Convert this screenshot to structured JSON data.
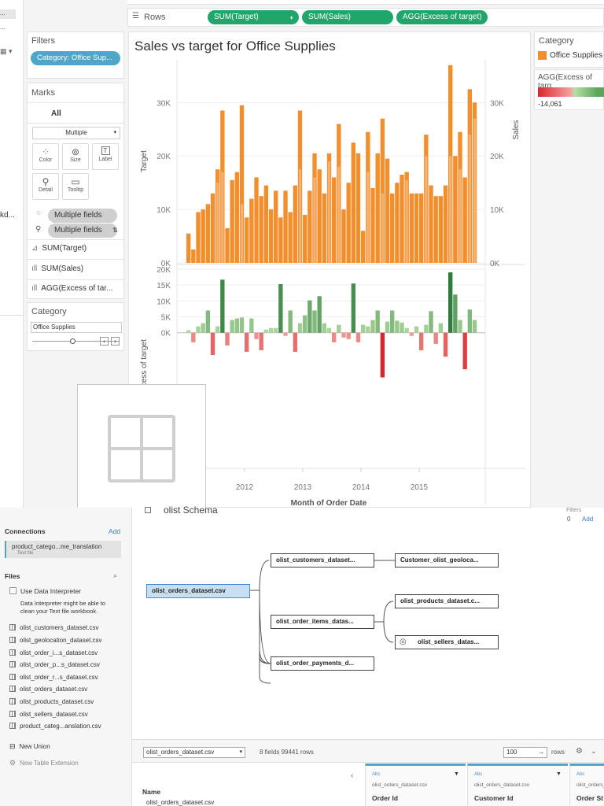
{
  "top_left": {
    "item1": "...",
    "item2": "..."
  },
  "rows_shelf": {
    "label": "Rows",
    "pills": [
      "SUM(Target)",
      "SUM(Sales)",
      "AGG(Excess of target)"
    ]
  },
  "filters": {
    "title": "Filters",
    "pill": "Category: Office Sup..."
  },
  "marks": {
    "title": "Marks",
    "all": "All",
    "type": "Multiple",
    "buttons": [
      "Color",
      "Size",
      "Label",
      "Detail",
      "Tooltip"
    ],
    "fields": [
      "Multiple fields",
      "Multiple fields"
    ],
    "shelves": [
      "SUM(Target)",
      "SUM(Sales)",
      "AGG(Excess of tar..."
    ]
  },
  "left_edge_text": "kd...",
  "category_filter": {
    "title": "Category",
    "value": "Office Supplies"
  },
  "chart_title": "Sales vs target for  Office Supplies",
  "legend": {
    "category_title": "Category",
    "category_item": "Office Supplies",
    "agg_title": "AGG(Excess of targ",
    "agg_min": "-14,061",
    "color_orange": "#f28e2b",
    "color_red": "#d7272e",
    "color_green": "#2f7d3c"
  },
  "chart_data": [
    {
      "type": "bar",
      "title": "Sales vs target for  Office Supplies",
      "ylabel": "Target",
      "ylabel_right": "Sales",
      "ylim": [
        0,
        38000
      ],
      "yticks": [
        "0K",
        "10K",
        "20K",
        "30K"
      ],
      "x_start": "2011-01",
      "sales": [
        5500,
        2500,
        9500,
        10000,
        11000,
        13000,
        17500,
        28500,
        6500,
        15500,
        17000,
        29500,
        8500,
        12000,
        16000,
        12500,
        14500,
        10000,
        13500,
        8500,
        13500,
        9500,
        14500,
        28500,
        9000,
        13500,
        20500,
        17500,
        13000,
        20500,
        16000,
        26000,
        10000,
        15000,
        22500,
        20500,
        6000,
        24500,
        14000,
        20500,
        27000,
        19500,
        13000,
        15000,
        16500,
        17000,
        13000,
        13000,
        13000,
        24000,
        14500,
        12500,
        12500,
        14500,
        37000,
        20000,
        24500,
        16000,
        32500,
        30000
      ],
      "target": [
        5500,
        2500,
        9500,
        10000,
        11000,
        13000,
        15000,
        17000,
        6500,
        15500,
        17000,
        11000,
        8500,
        12000,
        16000,
        12500,
        14500,
        10000,
        13500,
        8500,
        13500,
        9500,
        14500,
        17500,
        9000,
        13500,
        16000,
        17500,
        13000,
        19000,
        16000,
        18000,
        10000,
        15000,
        22500,
        20500,
        6000,
        17000,
        14000,
        20500,
        13000,
        19500,
        13000,
        15000,
        16500,
        15500,
        13000,
        13000,
        13000,
        20000,
        14500,
        12500,
        12500,
        14500,
        20000,
        20000,
        17500,
        16000,
        24000,
        27000
      ]
    },
    {
      "type": "bar",
      "ylabel": "Excess of target",
      "xlabel": "Month of Order Date",
      "ylim": [
        -14061,
        20000
      ],
      "yticks": [
        "0K",
        "5K",
        "10K",
        "15K",
        "20K"
      ],
      "xticks": [
        "2012",
        "2013",
        "2014",
        "2015"
      ],
      "values": [
        800,
        -3000,
        2000,
        3000,
        7000,
        -7000,
        2000,
        16700,
        -4000,
        4000,
        4500,
        4800,
        -6000,
        4500,
        -2000,
        -5500,
        1000,
        1500,
        1500,
        15300,
        -1000,
        7000,
        -6000,
        3000,
        5500,
        10200,
        7000,
        11500,
        3000,
        1500,
        -3000,
        2500,
        -1500,
        -2000,
        15500,
        -3000,
        2500,
        2000,
        4000,
        7000,
        -14061,
        3500,
        7000,
        3800,
        3200,
        1500,
        -1000,
        2000,
        -5500,
        2500,
        6800,
        -3500,
        3000,
        -7500,
        19000,
        12000,
        4000,
        -11500,
        7300,
        4000
      ]
    }
  ],
  "data_source": {
    "schema_title": "olist Schema",
    "filters_label": "Filters",
    "filters_count": "0",
    "filters_add": "Add",
    "connections_title": "Connections",
    "connections_add": "Add",
    "connection_name": "product_catego...me_translation",
    "connection_type": "Text file",
    "files_title": "Files",
    "use_interpreter": "Use Data Interpreter",
    "interpreter_note_1": "Data Interpreter might be able to",
    "interpreter_note_2": "clean your Text file workbook.",
    "files": [
      "olist_customers_dataset.csv",
      "olist_geolocation_dataset.csv",
      "olist_order_i...s_dataset.csv",
      "olist_order_p...s_dataset.csv",
      "olist_order_r...s_dataset.csv",
      "olist_orders_dataset.csv",
      "olist_products_dataset.csv",
      "olist_sellers_dataset.csv",
      "product_categ...anslation.csv"
    ],
    "new_union": "New Union",
    "new_table_extension": "New Table Extension",
    "nodes": {
      "orders": "olist_orders_dataset.csv",
      "customers": "olist_customers_dataset...",
      "geolocation": "Customer_olist_geoloca...",
      "order_items": "olist_order_items_datas...",
      "products": "olist_products_dataset.c...",
      "sellers": "olist_sellers_datas...",
      "payments": "olist_order_payments_d..."
    },
    "table_select": "olist_orders_dataset.csv",
    "fields_rows": "8 fields 99441 rows",
    "rows_value": "100",
    "rows_label": "rows",
    "grid": {
      "name_header": "Name",
      "name_value": "olist_orders_dataset.csv",
      "col_type": "Abc",
      "col_source": "olist_orders_dataset.csv",
      "columns": [
        "Order Id",
        "Customer Id",
        "Order St"
      ]
    }
  }
}
